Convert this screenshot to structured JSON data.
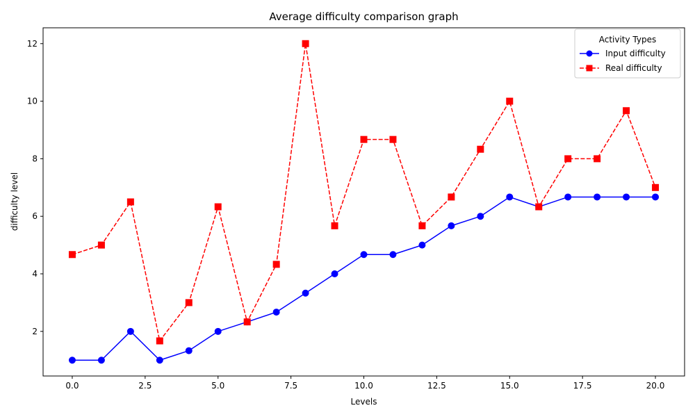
{
  "chart_data": {
    "type": "line",
    "title": "Average difficulty comparison graph",
    "xlabel": "Levels",
    "ylabel": "difficulty level",
    "xlim": [
      -1.0,
      21.0
    ],
    "ylim": [
      0.45,
      12.55
    ],
    "x_ticks": [
      0.0,
      2.5,
      5.0,
      7.5,
      10.0,
      12.5,
      15.0,
      17.5,
      20.0
    ],
    "x_tick_labels": [
      "0.0",
      "2.5",
      "5.0",
      "7.5",
      "10.0",
      "12.5",
      "15.0",
      "17.5",
      "20.0"
    ],
    "y_ticks": [
      2,
      4,
      6,
      8,
      10,
      12
    ],
    "y_tick_labels": [
      "2",
      "4",
      "6",
      "8",
      "10",
      "12"
    ],
    "grid": false,
    "legend": {
      "title": "Activity Types",
      "placement": "top-right"
    },
    "x": [
      0,
      1,
      2,
      3,
      4,
      5,
      6,
      7,
      8,
      9,
      10,
      11,
      12,
      13,
      14,
      15,
      16,
      17,
      18,
      19,
      20
    ],
    "series": [
      {
        "name": "Input difficulty",
        "color": "#0000ff",
        "line_style": "solid",
        "marker": "circle",
        "values": [
          1.0,
          1.0,
          2.0,
          1.0,
          1.33,
          2.0,
          2.33,
          2.67,
          3.33,
          4.0,
          4.67,
          4.67,
          5.0,
          5.67,
          6.0,
          6.67,
          6.33,
          6.67,
          6.67,
          6.67,
          6.67
        ]
      },
      {
        "name": "Real difficulty",
        "color": "#ff0000",
        "line_style": "dashed",
        "marker": "square",
        "values": [
          4.67,
          5.0,
          6.5,
          1.67,
          3.0,
          6.33,
          2.33,
          4.33,
          12.0,
          5.67,
          8.67,
          8.67,
          5.67,
          6.67,
          8.33,
          10.0,
          6.33,
          8.0,
          8.0,
          9.67,
          7.0
        ]
      }
    ]
  }
}
